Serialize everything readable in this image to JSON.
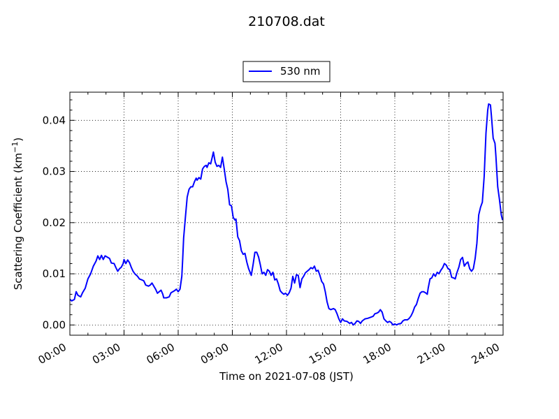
{
  "chart_data": {
    "type": "line",
    "title": "210708.dat",
    "xlabel": "Time on 2021-07-08 (JST)",
    "ylabel_main": "Scattering Coefficient (km",
    "ylabel_sup": "−1",
    "ylabel_end": ")",
    "x_unit": "hours",
    "xlim": [
      0,
      24
    ],
    "ylim": [
      -0.002,
      0.0455
    ],
    "x_ticks": [
      {
        "value": 0,
        "label": "00:00"
      },
      {
        "value": 3,
        "label": "03:00"
      },
      {
        "value": 6,
        "label": "06:00"
      },
      {
        "value": 9,
        "label": "09:00"
      },
      {
        "value": 12,
        "label": "12:00"
      },
      {
        "value": 15,
        "label": "15:00"
      },
      {
        "value": 18,
        "label": "18:00"
      },
      {
        "value": 21,
        "label": "21:00"
      },
      {
        "value": 24,
        "label": "24:00"
      }
    ],
    "y_ticks": [
      {
        "value": 0.0,
        "label": "0.00"
      },
      {
        "value": 0.01,
        "label": "0.01"
      },
      {
        "value": 0.02,
        "label": "0.02"
      },
      {
        "value": 0.03,
        "label": "0.03"
      },
      {
        "value": 0.04,
        "label": "0.04"
      }
    ],
    "grid": true,
    "legend_position": "top-center",
    "series": [
      {
        "name": "530 nm",
        "color": "#0000ff",
        "points": [
          [
            0.0,
            0.005
          ],
          [
            0.1,
            0.0047
          ],
          [
            0.25,
            0.005
          ],
          [
            0.35,
            0.0065
          ],
          [
            0.45,
            0.0058
          ],
          [
            0.6,
            0.0055
          ],
          [
            0.7,
            0.0063
          ],
          [
            0.85,
            0.0072
          ],
          [
            1.0,
            0.009
          ],
          [
            1.15,
            0.01
          ],
          [
            1.3,
            0.0115
          ],
          [
            1.45,
            0.0125
          ],
          [
            1.55,
            0.0135
          ],
          [
            1.65,
            0.0128
          ],
          [
            1.75,
            0.0136
          ],
          [
            1.85,
            0.0128
          ],
          [
            1.95,
            0.0135
          ],
          [
            2.1,
            0.0132
          ],
          [
            2.2,
            0.013
          ],
          [
            2.3,
            0.0121
          ],
          [
            2.45,
            0.012
          ],
          [
            2.55,
            0.0112
          ],
          [
            2.65,
            0.0105
          ],
          [
            2.75,
            0.011
          ],
          [
            2.85,
            0.0113
          ],
          [
            2.95,
            0.012
          ],
          [
            3.0,
            0.0128
          ],
          [
            3.1,
            0.012
          ],
          [
            3.2,
            0.0127
          ],
          [
            3.3,
            0.0122
          ],
          [
            3.4,
            0.0113
          ],
          [
            3.5,
            0.0105
          ],
          [
            3.6,
            0.01
          ],
          [
            3.75,
            0.0095
          ],
          [
            3.85,
            0.009
          ],
          [
            4.0,
            0.0088
          ],
          [
            4.1,
            0.0086
          ],
          [
            4.2,
            0.0078
          ],
          [
            4.35,
            0.0076
          ],
          [
            4.45,
            0.0078
          ],
          [
            4.55,
            0.0082
          ],
          [
            4.65,
            0.0076
          ],
          [
            4.75,
            0.007
          ],
          [
            4.85,
            0.0062
          ],
          [
            4.95,
            0.0065
          ],
          [
            5.05,
            0.0068
          ],
          [
            5.15,
            0.006
          ],
          [
            5.2,
            0.0053
          ],
          [
            5.35,
            0.0053
          ],
          [
            5.5,
            0.0055
          ],
          [
            5.6,
            0.0063
          ],
          [
            5.7,
            0.0065
          ],
          [
            5.8,
            0.0067
          ],
          [
            5.9,
            0.007
          ],
          [
            6.0,
            0.0065
          ],
          [
            6.1,
            0.007
          ],
          [
            6.2,
            0.0095
          ],
          [
            6.25,
            0.013
          ],
          [
            6.3,
            0.017
          ],
          [
            6.4,
            0.021
          ],
          [
            6.5,
            0.025
          ],
          [
            6.6,
            0.0265
          ],
          [
            6.7,
            0.027
          ],
          [
            6.8,
            0.027
          ],
          [
            6.9,
            0.028
          ],
          [
            7.0,
            0.0287
          ],
          [
            7.05,
            0.0283
          ],
          [
            7.15,
            0.0288
          ],
          [
            7.25,
            0.0285
          ],
          [
            7.35,
            0.0305
          ],
          [
            7.45,
            0.031
          ],
          [
            7.55,
            0.0312
          ],
          [
            7.6,
            0.0308
          ],
          [
            7.7,
            0.0317
          ],
          [
            7.8,
            0.0315
          ],
          [
            7.9,
            0.033
          ],
          [
            7.95,
            0.0338
          ],
          [
            8.05,
            0.0318
          ],
          [
            8.15,
            0.031
          ],
          [
            8.25,
            0.0312
          ],
          [
            8.35,
            0.0308
          ],
          [
            8.45,
            0.0328
          ],
          [
            8.55,
            0.0305
          ],
          [
            8.65,
            0.028
          ],
          [
            8.75,
            0.0265
          ],
          [
            8.85,
            0.0235
          ],
          [
            8.95,
            0.0233
          ],
          [
            9.05,
            0.021
          ],
          [
            9.15,
            0.0205
          ],
          [
            9.2,
            0.0207
          ],
          [
            9.3,
            0.0172
          ],
          [
            9.4,
            0.0165
          ],
          [
            9.5,
            0.0145
          ],
          [
            9.6,
            0.0138
          ],
          [
            9.7,
            0.014
          ],
          [
            9.8,
            0.0123
          ],
          [
            9.9,
            0.011
          ],
          [
            10.05,
            0.0097
          ],
          [
            10.15,
            0.0118
          ],
          [
            10.25,
            0.0142
          ],
          [
            10.35,
            0.0142
          ],
          [
            10.45,
            0.0133
          ],
          [
            10.55,
            0.0118
          ],
          [
            10.65,
            0.01
          ],
          [
            10.75,
            0.0103
          ],
          [
            10.85,
            0.0097
          ],
          [
            10.95,
            0.0108
          ],
          [
            11.05,
            0.0105
          ],
          [
            11.15,
            0.0097
          ],
          [
            11.25,
            0.0103
          ],
          [
            11.35,
            0.0088
          ],
          [
            11.45,
            0.009
          ],
          [
            11.55,
            0.008
          ],
          [
            11.65,
            0.0067
          ],
          [
            11.75,
            0.0063
          ],
          [
            11.85,
            0.006
          ],
          [
            11.95,
            0.0062
          ],
          [
            12.05,
            0.0058
          ],
          [
            12.15,
            0.0063
          ],
          [
            12.25,
            0.0072
          ],
          [
            12.35,
            0.0095
          ],
          [
            12.45,
            0.0082
          ],
          [
            12.55,
            0.0098
          ],
          [
            12.65,
            0.0097
          ],
          [
            12.75,
            0.0073
          ],
          [
            12.85,
            0.009
          ],
          [
            12.95,
            0.0095
          ],
          [
            13.05,
            0.0102
          ],
          [
            13.15,
            0.0105
          ],
          [
            13.25,
            0.0108
          ],
          [
            13.35,
            0.0112
          ],
          [
            13.45,
            0.011
          ],
          [
            13.55,
            0.0115
          ],
          [
            13.65,
            0.0105
          ],
          [
            13.75,
            0.0107
          ],
          [
            13.85,
            0.0097
          ],
          [
            13.95,
            0.0085
          ],
          [
            14.05,
            0.008
          ],
          [
            14.15,
            0.0065
          ],
          [
            14.25,
            0.0045
          ],
          [
            14.35,
            0.0032
          ],
          [
            14.45,
            0.003
          ],
          [
            14.6,
            0.0032
          ],
          [
            14.7,
            0.003
          ],
          [
            14.8,
            0.0022
          ],
          [
            14.9,
            0.0012
          ],
          [
            15.0,
            0.0005
          ],
          [
            15.1,
            0.0012
          ],
          [
            15.2,
            0.0008
          ],
          [
            15.35,
            0.0007
          ],
          [
            15.5,
            0.0003
          ],
          [
            15.6,
            0.0005
          ],
          [
            15.7,
            0.0
          ],
          [
            15.8,
            0.0003
          ],
          [
            15.9,
            0.0008
          ],
          [
            16.0,
            0.0007
          ],
          [
            16.1,
            0.0003
          ],
          [
            16.2,
            0.0008
          ],
          [
            16.35,
            0.0012
          ],
          [
            16.5,
            0.0013
          ],
          [
            16.65,
            0.0015
          ],
          [
            16.8,
            0.0017
          ],
          [
            16.9,
            0.0022
          ],
          [
            17.0,
            0.0023
          ],
          [
            17.1,
            0.0025
          ],
          [
            17.2,
            0.003
          ],
          [
            17.3,
            0.0025
          ],
          [
            17.4,
            0.0012
          ],
          [
            17.5,
            0.0008
          ],
          [
            17.6,
            0.0005
          ],
          [
            17.7,
            0.0007
          ],
          [
            17.8,
            0.0005
          ],
          [
            17.9,
            0.0
          ],
          [
            18.0,
            0.0002
          ],
          [
            18.1,
            0.0
          ],
          [
            18.2,
            0.0002
          ],
          [
            18.35,
            0.0003
          ],
          [
            18.45,
            0.0008
          ],
          [
            18.55,
            0.001
          ],
          [
            18.7,
            0.001
          ],
          [
            18.8,
            0.0013
          ],
          [
            18.9,
            0.0018
          ],
          [
            19.0,
            0.0025
          ],
          [
            19.1,
            0.0035
          ],
          [
            19.2,
            0.004
          ],
          [
            19.3,
            0.0052
          ],
          [
            19.4,
            0.0062
          ],
          [
            19.5,
            0.0065
          ],
          [
            19.6,
            0.0065
          ],
          [
            19.7,
            0.0063
          ],
          [
            19.8,
            0.006
          ],
          [
            19.85,
            0.0072
          ],
          [
            19.95,
            0.009
          ],
          [
            20.05,
            0.0092
          ],
          [
            20.15,
            0.01
          ],
          [
            20.25,
            0.0095
          ],
          [
            20.35,
            0.0103
          ],
          [
            20.45,
            0.01
          ],
          [
            20.55,
            0.0107
          ],
          [
            20.65,
            0.0112
          ],
          [
            20.75,
            0.012
          ],
          [
            20.85,
            0.0117
          ],
          [
            20.95,
            0.011
          ],
          [
            21.05,
            0.0108
          ],
          [
            21.15,
            0.0093
          ],
          [
            21.25,
            0.0092
          ],
          [
            21.35,
            0.009
          ],
          [
            21.45,
            0.0103
          ],
          [
            21.55,
            0.0113
          ],
          [
            21.65,
            0.0128
          ],
          [
            21.75,
            0.0132
          ],
          [
            21.85,
            0.0115
          ],
          [
            21.95,
            0.012
          ],
          [
            22.05,
            0.0123
          ],
          [
            22.15,
            0.011
          ],
          [
            22.25,
            0.0105
          ],
          [
            22.35,
            0.011
          ],
          [
            22.45,
            0.013
          ],
          [
            22.55,
            0.016
          ],
          [
            22.65,
            0.0215
          ],
          [
            22.75,
            0.023
          ],
          [
            22.85,
            0.024
          ],
          [
            22.95,
            0.029
          ],
          [
            23.05,
            0.0375
          ],
          [
            23.15,
            0.042
          ],
          [
            23.2,
            0.0432
          ],
          [
            23.3,
            0.043
          ],
          [
            23.35,
            0.041
          ],
          [
            23.45,
            0.0365
          ],
          [
            23.55,
            0.0355
          ],
          [
            23.6,
            0.033
          ],
          [
            23.7,
            0.027
          ],
          [
            23.8,
            0.0245
          ],
          [
            23.9,
            0.0215
          ],
          [
            23.97,
            0.0205
          ]
        ]
      }
    ]
  }
}
